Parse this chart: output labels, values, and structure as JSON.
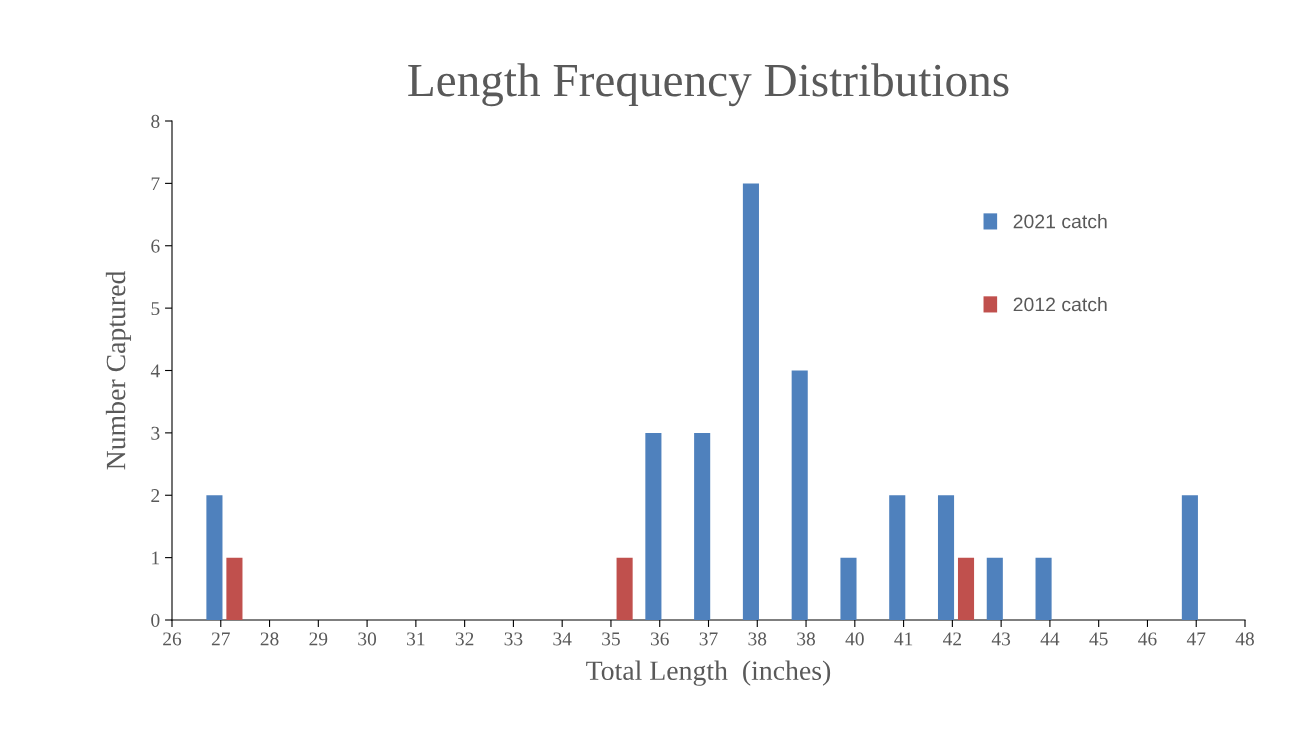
{
  "chart_data": {
    "type": "bar",
    "title": "Length Frequency Distributions",
    "xlabel": "Total Length  (inches)",
    "ylabel": "Number Captured",
    "categories": [
      "26",
      "27",
      "28",
      "29",
      "30",
      "31",
      "32",
      "33",
      "34",
      "35",
      "36",
      "37",
      "38",
      "38",
      "40",
      "41",
      "42",
      "43",
      "44",
      "45",
      "46",
      "47",
      "48"
    ],
    "series": [
      {
        "name": "2021 catch",
        "color": "#4f81bd",
        "values": [
          0,
          2,
          0,
          0,
          0,
          0,
          0,
          0,
          0,
          0,
          3,
          3,
          7,
          4,
          1,
          2,
          2,
          1,
          1,
          0,
          0,
          2,
          0
        ]
      },
      {
        "name": "2012 catch",
        "color": "#c0504d",
        "values": [
          0,
          1,
          0,
          0,
          0,
          0,
          0,
          0,
          0,
          1,
          0,
          0,
          0,
          0,
          0,
          0,
          1,
          0,
          0,
          0,
          0,
          0,
          0
        ]
      }
    ],
    "ylim": [
      0,
      8
    ],
    "yticks": [
      0,
      1,
      2,
      3,
      4,
      5,
      6,
      7,
      8
    ],
    "grid": false,
    "legend": "right"
  }
}
